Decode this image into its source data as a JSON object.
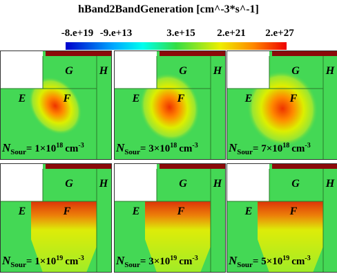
{
  "title": "hBand2BandGeneration [cm^-3*s^-1]",
  "colorbar": {
    "labels": [
      "-8.e+19",
      "-9.e+13",
      "3.e+15",
      "2.e+21",
      "2.e+27"
    ]
  },
  "panels": [
    {
      "labels": {
        "G": "G",
        "H": "H",
        "E": "E",
        "F": "F"
      },
      "caption": {
        "symbol": "N",
        "subscript": "Sour",
        "text": "= 1×10",
        "exponent": "18",
        "unit": "cm",
        "unit_exponent": "-3"
      }
    },
    {
      "labels": {
        "G": "G",
        "H": "H",
        "E": "E",
        "F": "F"
      },
      "caption": {
        "symbol": "N",
        "subscript": "Sour",
        "text": "= 3×10",
        "exponent": "18",
        "unit": "cm",
        "unit_exponent": "-3"
      }
    },
    {
      "labels": {
        "G": "G",
        "H": "H",
        "E": "E",
        "F": "F"
      },
      "caption": {
        "symbol": "N",
        "subscript": "Sour",
        "text": "= 7×10",
        "exponent": "18",
        "unit": "cm",
        "unit_exponent": "-3"
      }
    },
    {
      "labels": {
        "G": "G",
        "H": "H",
        "E": "E",
        "F": "F"
      },
      "caption": {
        "symbol": "N",
        "subscript": "Sour",
        "text": "= 1×10",
        "exponent": "19",
        "unit": "cm",
        "unit_exponent": "-3"
      }
    },
    {
      "labels": {
        "G": "G",
        "H": "H",
        "E": "E",
        "F": "F"
      },
      "caption": {
        "symbol": "N",
        "subscript": "Sour",
        "text": "= 3×10",
        "exponent": "19",
        "unit": "cm",
        "unit_exponent": "-3"
      }
    },
    {
      "labels": {
        "G": "G",
        "H": "H",
        "E": "E",
        "F": "F"
      },
      "caption": {
        "symbol": "N",
        "subscript": "Sour",
        "text": "= 5×10",
        "exponent": "19",
        "unit": "cm",
        "unit_exponent": "-3"
      }
    }
  ]
}
